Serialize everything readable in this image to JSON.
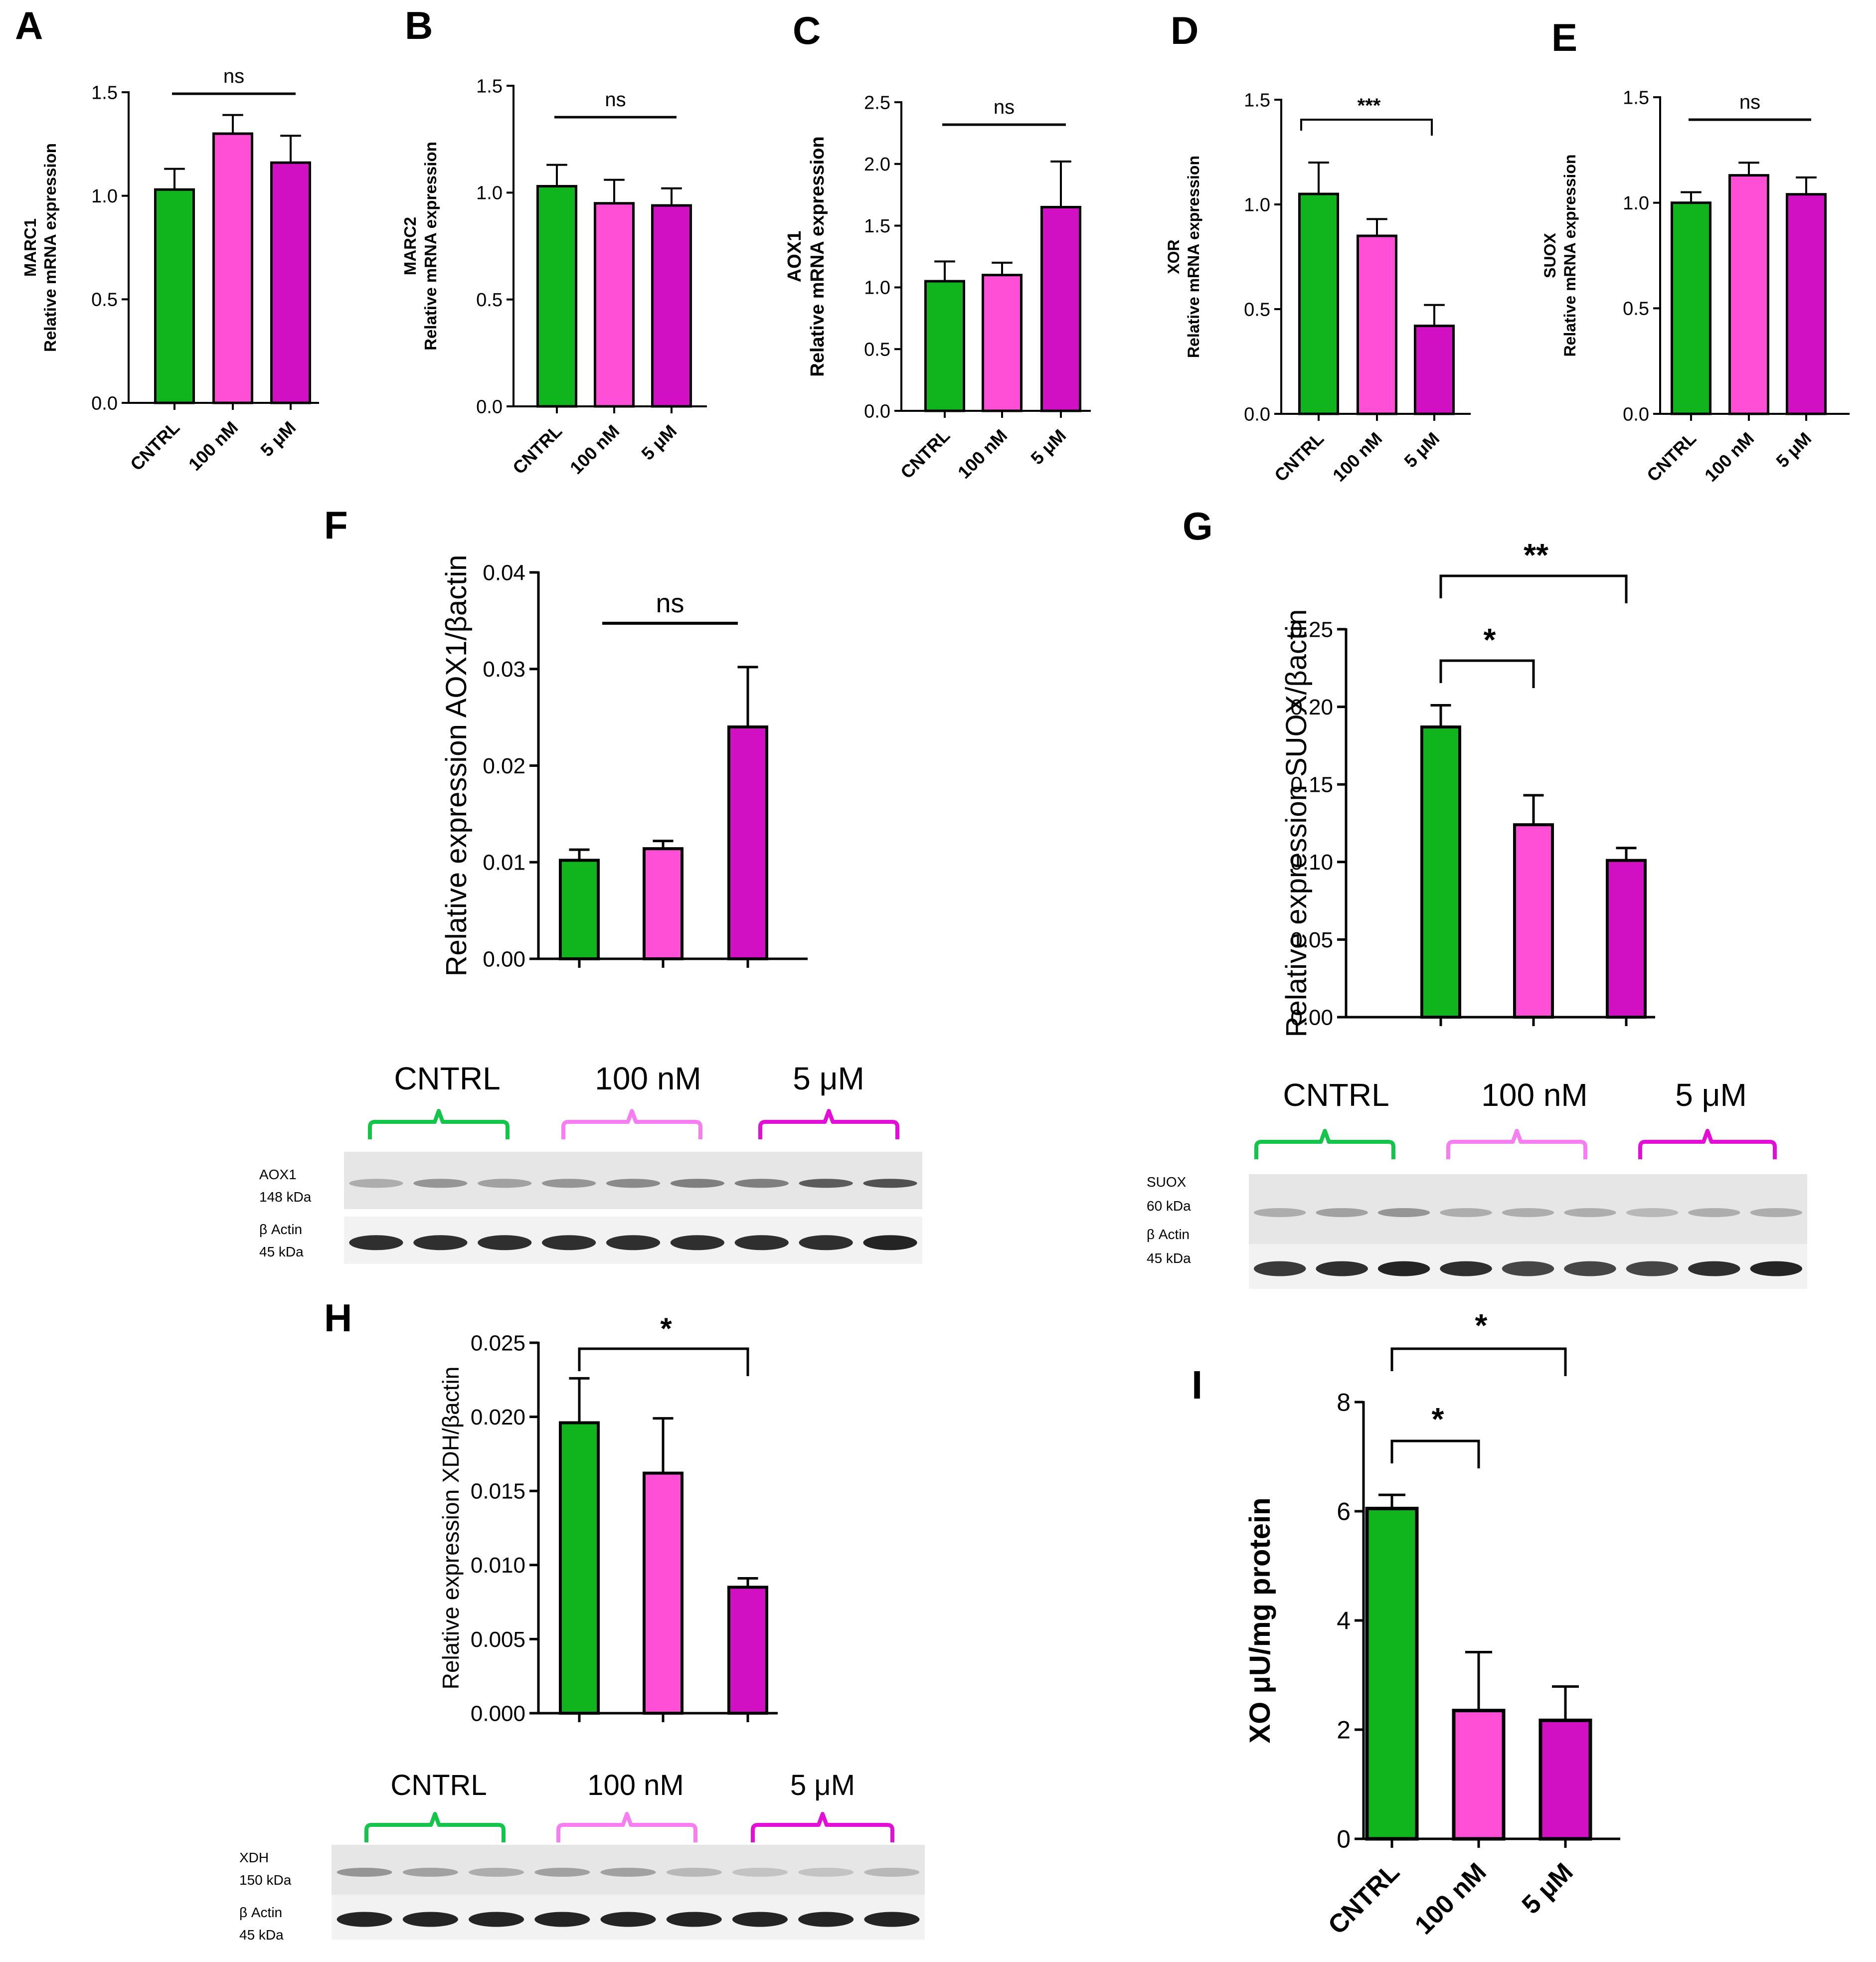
{
  "colors": {
    "green": "#10b51e",
    "light_pink": "#ff4fd6",
    "magenta": "#d10fc3",
    "bracket_green": "#15c44a",
    "bracket_light_pink": "#f77ef0",
    "bracket_magenta": "#e20fd6"
  },
  "chart_data": [
    {
      "panel": "A",
      "type": "bar",
      "categories": [
        "CNTRL",
        "100 nM",
        "5 μM"
      ],
      "values": [
        1.03,
        1.3,
        1.16
      ],
      "errors": [
        0.1,
        0.09,
        0.13
      ],
      "ylabel_gene": "MARC1",
      "ylabel": "Relative mRNA expression",
      "ylim": [
        0,
        1.5
      ],
      "yticks": [
        "0.0",
        "0.5",
        "1.0",
        "1.5"
      ],
      "significance": [
        {
          "type": "line",
          "from": 0,
          "to": 2,
          "label": "ns"
        }
      ]
    },
    {
      "panel": "B",
      "type": "bar",
      "categories": [
        "CNTRL",
        "100 nM",
        "5 μM"
      ],
      "values": [
        1.03,
        0.95,
        0.94
      ],
      "errors": [
        0.1,
        0.11,
        0.08
      ],
      "ylabel_gene": "MARC2",
      "ylabel": "Relative mRNA expression",
      "ylim": [
        0,
        1.5
      ],
      "yticks": [
        "0.0",
        "0.5",
        "1.0",
        "1.5"
      ],
      "significance": [
        {
          "type": "line",
          "from": 0,
          "to": 2,
          "label": "ns"
        }
      ]
    },
    {
      "panel": "C",
      "type": "bar",
      "categories": [
        "CNTRL",
        "100 nM",
        "5 μM"
      ],
      "values": [
        1.05,
        1.1,
        1.65
      ],
      "errors": [
        0.16,
        0.1,
        0.37
      ],
      "ylabel_gene": "AOX1",
      "ylabel": "Relative mRNA expression",
      "ylim": [
        0,
        2.5
      ],
      "yticks": [
        "0.0",
        "0.5",
        "1.0",
        "1.5",
        "2.0",
        "2.5"
      ],
      "significance": [
        {
          "type": "line",
          "from": 0,
          "to": 2,
          "label": "ns"
        }
      ]
    },
    {
      "panel": "D",
      "type": "bar",
      "categories": [
        "CNTRL",
        "100 nM",
        "5 μM"
      ],
      "values": [
        1.05,
        0.85,
        0.42
      ],
      "errors": [
        0.15,
        0.08,
        0.1
      ],
      "ylabel_gene": "XOR",
      "ylabel": "Relative mRNA expression",
      "ylim": [
        0,
        1.5
      ],
      "yticks": [
        "0.0",
        "0.5",
        "1.0",
        "1.5"
      ],
      "significance": [
        {
          "type": "bracket",
          "from": 0,
          "to": 2,
          "label": "***"
        }
      ]
    },
    {
      "panel": "E",
      "type": "bar",
      "categories": [
        "CNTRL",
        "100 nM",
        "5 μM"
      ],
      "values": [
        1.0,
        1.13,
        1.04
      ],
      "errors": [
        0.05,
        0.06,
        0.08
      ],
      "ylabel_gene": "SUOX",
      "ylabel": "Relative mRNA expression",
      "ylim": [
        0,
        1.5
      ],
      "yticks": [
        "0.0",
        "0.5",
        "1.0",
        "1.5"
      ],
      "significance": [
        {
          "type": "line",
          "from": 0,
          "to": 2,
          "label": "ns"
        }
      ]
    },
    {
      "panel": "F",
      "type": "bar",
      "categories": [
        "",
        "",
        ""
      ],
      "values": [
        0.0102,
        0.0114,
        0.024
      ],
      "errors": [
        0.0011,
        0.0008,
        0.0062
      ],
      "ylabel": "Relative expression AOX1/βactin",
      "ylim": [
        0,
        0.04
      ],
      "yticks": [
        "0.00",
        "0.01",
        "0.02",
        "0.03",
        "0.04"
      ],
      "significance": [
        {
          "type": "line",
          "from": 0.35,
          "to": 1.85,
          "label": "ns"
        }
      ]
    },
    {
      "panel": "G",
      "type": "bar",
      "categories": [
        "",
        "",
        ""
      ],
      "values": [
        0.187,
        0.124,
        0.101
      ],
      "errors": [
        0.014,
        0.019,
        0.008
      ],
      "ylabel": "Relative expression SUOX/βactin",
      "ylim": [
        0,
        0.25
      ],
      "yticks": [
        "0.00",
        "0.05",
        "0.10",
        "0.15",
        "0.20",
        "0.25"
      ],
      "significance": [
        {
          "type": "bracket",
          "from": 0,
          "to": 1,
          "label": "*"
        },
        {
          "type": "bracket",
          "from": 0,
          "to": 2,
          "label": "**"
        }
      ]
    },
    {
      "panel": "H",
      "type": "bar",
      "categories": [
        "",
        "",
        ""
      ],
      "values": [
        0.0196,
        0.0162,
        0.0085
      ],
      "errors": [
        0.003,
        0.0037,
        0.0006
      ],
      "ylabel": "Relative expression XDH/βactin",
      "ylim": [
        0,
        0.025
      ],
      "yticks": [
        "0.000",
        "0.005",
        "0.010",
        "0.015",
        "0.020",
        "0.025"
      ],
      "significance": [
        {
          "type": "bracket",
          "from": 0,
          "to": 2,
          "label": "*"
        }
      ]
    },
    {
      "panel": "I",
      "type": "bar",
      "categories": [
        "CNTRL",
        "100 nM",
        "5 μM"
      ],
      "values": [
        6.05,
        2.35,
        2.17
      ],
      "errors": [
        0.25,
        1.07,
        0.62
      ],
      "ylabel": "XO μU/mg protein",
      "ylim": [
        0,
        8
      ],
      "yticks": [
        "0",
        "2",
        "4",
        "6",
        "8"
      ],
      "significance": [
        {
          "type": "bracket",
          "from": 0,
          "to": 1,
          "label": "*"
        },
        {
          "type": "bracket",
          "from": 0,
          "to": 2,
          "label": "*"
        }
      ]
    }
  ],
  "blots": [
    {
      "panel": "F",
      "groups": [
        "CNTRL",
        "100 nM",
        "5 μM"
      ],
      "rows": [
        {
          "label": "AOX1",
          "size": "148 kDa",
          "band_intensity": [
            0.35,
            0.45,
            0.4,
            0.45,
            0.5,
            0.55,
            0.55,
            0.7,
            0.75
          ]
        },
        {
          "label": "β Actin",
          "size": "45 kDa",
          "band_intensity": [
            0.9,
            0.9,
            0.9,
            0.9,
            0.9,
            0.9,
            0.9,
            0.9,
            0.95
          ]
        }
      ]
    },
    {
      "panel": "G",
      "groups": [
        "CNTRL",
        "100 nM",
        "5 μM"
      ],
      "rows": [
        {
          "label": "SUOX",
          "size": "60 kDa",
          "band_intensity": [
            0.35,
            0.4,
            0.45,
            0.35,
            0.35,
            0.35,
            0.3,
            0.35,
            0.35
          ]
        },
        {
          "label": "β Actin",
          "size": "45 kDa",
          "band_intensity": [
            0.85,
            0.9,
            0.95,
            0.9,
            0.8,
            0.8,
            0.8,
            0.9,
            0.95
          ]
        }
      ]
    },
    {
      "panel": "H",
      "groups": [
        "CNTRL",
        "100 nM",
        "5 μM"
      ],
      "rows": [
        {
          "label": "XDH",
          "size": "150 kDa",
          "band_intensity": [
            0.45,
            0.4,
            0.35,
            0.4,
            0.4,
            0.3,
            0.25,
            0.25,
            0.3
          ]
        },
        {
          "label": "β Actin",
          "size": "45 kDa",
          "band_intensity": [
            0.95,
            0.95,
            0.95,
            0.95,
            0.95,
            0.95,
            0.95,
            0.95,
            0.95
          ]
        }
      ]
    }
  ]
}
